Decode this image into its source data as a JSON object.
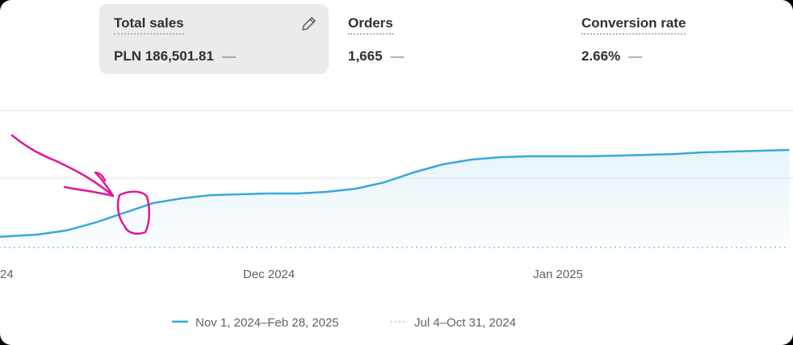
{
  "metrics": [
    {
      "label": "Total sales",
      "value": "PLN 186,501.81",
      "change": "—"
    },
    {
      "label": "Orders",
      "value": "1,665",
      "change": "—"
    },
    {
      "label": "Conversion rate",
      "value": "2.66%",
      "change": "—"
    }
  ],
  "chart_data": {
    "type": "line",
    "categories": [
      "24",
      null,
      null,
      null,
      null,
      null,
      null,
      null,
      null,
      null,
      "Dec 2024",
      null,
      null,
      null,
      null,
      null,
      null,
      null,
      null,
      null,
      "Jan 2025",
      null,
      null,
      null,
      null,
      null,
      null,
      null,
      null
    ],
    "series": [
      {
        "name": "Nov 1, 2024–Feb 28, 2025",
        "color": "#3aa8dc",
        "values": [
          7,
          8.2,
          9.4,
          12.4,
          18.2,
          25.3,
          32.4,
          35.9,
          38.2,
          38.8,
          39.4,
          39.4,
          40.6,
          42.9,
          47.6,
          54.7,
          60.6,
          64.1,
          65.9,
          66.5,
          66.5,
          66.5,
          67,
          67.6,
          68.2,
          69.4,
          70,
          70.6,
          71.2
        ]
      },
      {
        "name": "Jul 4–Oct 31, 2024",
        "color": "#a9d6ee",
        "values": [
          0,
          0,
          0,
          0,
          0,
          0,
          0,
          0,
          0,
          0,
          0,
          0,
          0,
          0,
          0,
          0,
          0,
          0,
          0,
          0,
          0,
          0,
          0,
          0,
          0,
          0,
          0,
          0,
          0
        ]
      }
    ],
    "ylim": [
      0,
      100
    ]
  }
}
